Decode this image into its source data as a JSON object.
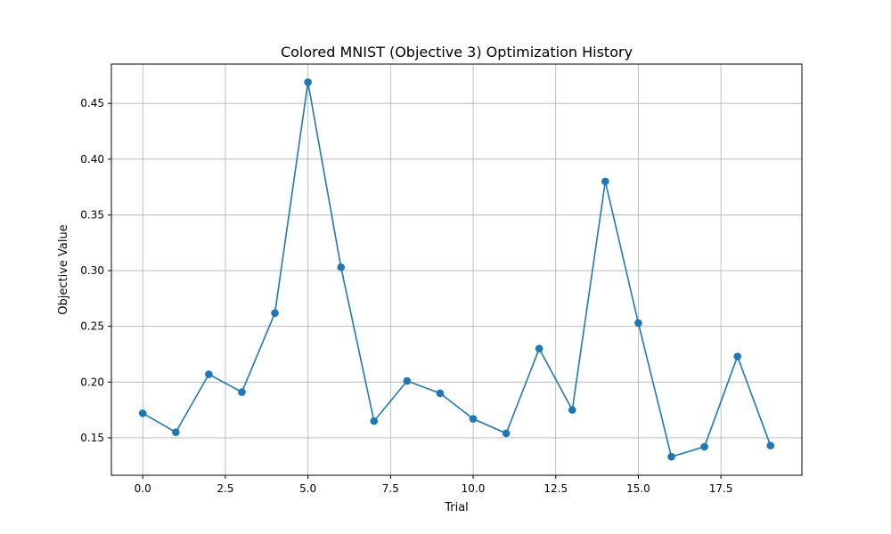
{
  "chart_data": {
    "type": "line",
    "title": "Colored MNIST (Objective 3) Optimization History",
    "xlabel": "Trial",
    "ylabel": "Objective Value",
    "xlim": [
      -0.95,
      19.95
    ],
    "ylim": [
      0.1164,
      0.4853
    ],
    "xticks": [
      0.0,
      2.5,
      5.0,
      7.5,
      10.0,
      12.5,
      15.0,
      17.5
    ],
    "xtick_labels": [
      "0.0",
      "2.5",
      "5.0",
      "7.5",
      "10.0",
      "12.5",
      "15.0",
      "17.5"
    ],
    "yticks": [
      0.15,
      0.2,
      0.25,
      0.3,
      0.35,
      0.4,
      0.45
    ],
    "ytick_labels": [
      "0.15",
      "0.20",
      "0.25",
      "0.30",
      "0.35",
      "0.40",
      "0.45"
    ],
    "grid": true,
    "color": "#1f77b4",
    "series": [
      {
        "x": [
          0,
          1,
          2,
          3,
          4,
          5,
          6,
          7,
          8,
          9,
          10,
          11,
          12,
          13,
          14,
          15,
          16,
          17,
          18,
          19
        ],
        "values": [
          0.172,
          0.155,
          0.207,
          0.191,
          0.262,
          0.469,
          0.303,
          0.165,
          0.201,
          0.19,
          0.167,
          0.154,
          0.23,
          0.175,
          0.38,
          0.253,
          0.133,
          0.142,
          0.223,
          0.143
        ]
      }
    ]
  }
}
